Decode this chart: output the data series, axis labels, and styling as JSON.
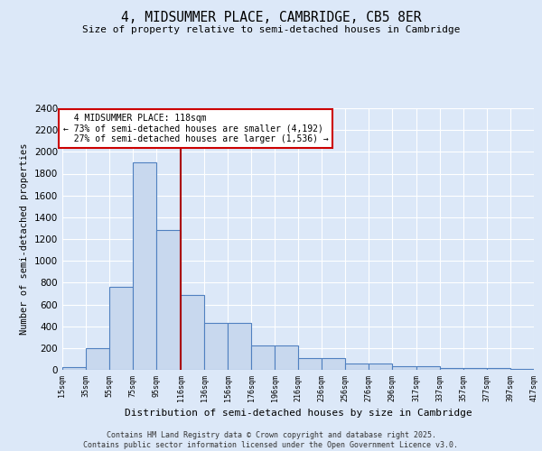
{
  "title": "4, MIDSUMMER PLACE, CAMBRIDGE, CB5 8ER",
  "subtitle": "Size of property relative to semi-detached houses in Cambridge",
  "xlabel": "Distribution of semi-detached houses by size in Cambridge",
  "ylabel": "Number of semi-detached properties",
  "property_label": "4 MIDSUMMER PLACE: 118sqm",
  "pct_smaller": 73,
  "count_smaller": 4192,
  "pct_larger": 27,
  "count_larger": 1536,
  "bin_edges": [
    15,
    35,
    55,
    75,
    95,
    116,
    136,
    156,
    176,
    196,
    216,
    236,
    256,
    276,
    296,
    317,
    337,
    357,
    377,
    397,
    417
  ],
  "bar_heights": [
    25,
    200,
    760,
    1900,
    1280,
    690,
    430,
    430,
    220,
    220,
    105,
    105,
    55,
    55,
    35,
    35,
    20,
    20,
    15,
    10
  ],
  "bar_color": "#c8d8ee",
  "bar_edge_color": "#5080c0",
  "line_color": "#aa0000",
  "background_color": "#dce8f8",
  "footer_line1": "Contains HM Land Registry data © Crown copyright and database right 2025.",
  "footer_line2": "Contains public sector information licensed under the Open Government Licence v3.0.",
  "ylim": [
    0,
    2400
  ],
  "yticks": [
    0,
    200,
    400,
    600,
    800,
    1000,
    1200,
    1400,
    1600,
    1800,
    2000,
    2200,
    2400
  ],
  "annotation_box_color": "#cc0000",
  "grid_color": "#ffffff"
}
